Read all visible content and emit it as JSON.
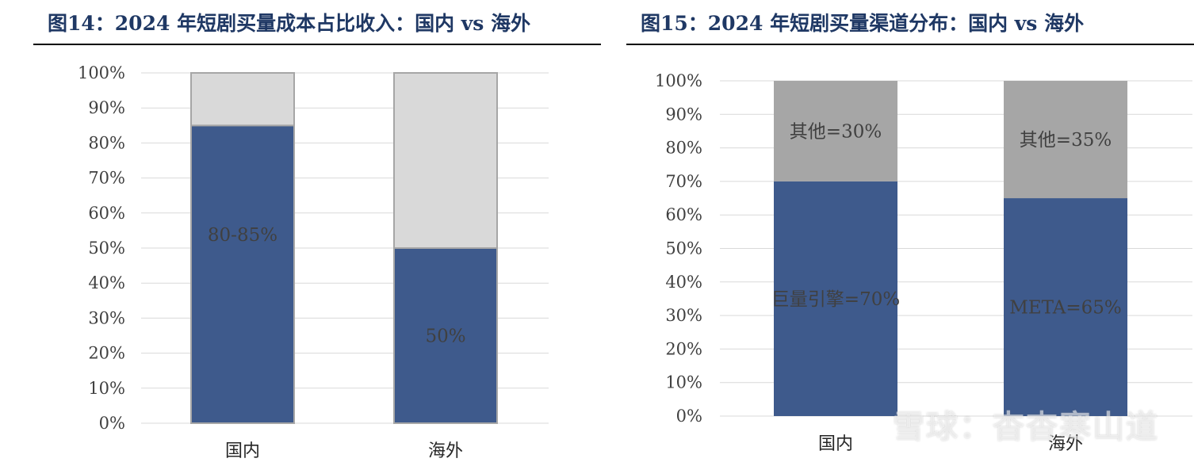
{
  "figures": [
    {
      "title": "图14：2024 年短剧买量成本占比收入：国内 vs 海外",
      "chart_data": {
        "type": "bar",
        "stacked": true,
        "categories": [
          "国内",
          "海外"
        ],
        "series": [
          {
            "values": [
              85,
              50
            ],
            "labels": [
              "80-85%",
              "50%"
            ],
            "color": "#3e5a8c"
          },
          {
            "values": [
              15,
              50
            ],
            "labels": [
              "",
              ""
            ],
            "color": "#d9d9d9"
          }
        ],
        "yticks": [
          "0%",
          "10%",
          "20%",
          "30%",
          "40%",
          "50%",
          "60%",
          "70%",
          "80%",
          "90%",
          "100%"
        ],
        "ylim": [
          0,
          100
        ],
        "grid": true,
        "xlabel": "",
        "ylabel": ""
      }
    },
    {
      "title": "图15：2024 年短剧买量渠道分布：国内 vs 海外",
      "chart_data": {
        "type": "bar",
        "stacked": true,
        "categories": [
          "国内",
          "海外"
        ],
        "series": [
          {
            "values": [
              70,
              65
            ],
            "labels": [
              "巨量引擎=70%",
              "META=65%"
            ],
            "color": "#3e5a8c"
          },
          {
            "values": [
              30,
              35
            ],
            "labels": [
              "其他=30%",
              "其他=35%"
            ],
            "color": "#a6a6a6"
          }
        ],
        "yticks": [
          "0%",
          "10%",
          "20%",
          "30%",
          "40%",
          "50%",
          "60%",
          "70%",
          "80%",
          "90%",
          "100%"
        ],
        "ylim": [
          0,
          100
        ],
        "grid": true,
        "xlabel": "",
        "ylabel": ""
      }
    }
  ],
  "watermark": "雪球：杳杳寒山道"
}
